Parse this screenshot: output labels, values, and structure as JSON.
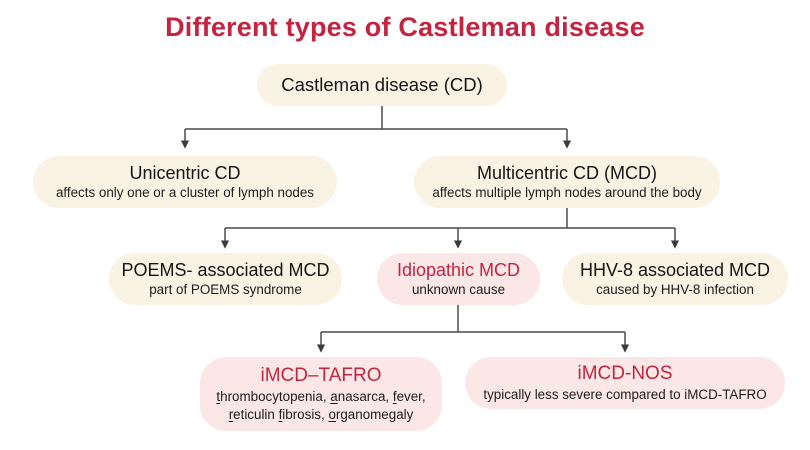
{
  "title": "Different types of Castleman disease",
  "colors": {
    "title_red": "#C32540",
    "node_red": "#C32540",
    "cream_bg": "#FAF2E2",
    "pink_bg": "#FBE7E6",
    "line": "#444444",
    "text": "#161616"
  },
  "nodes": {
    "root": {
      "label": "Castleman disease (CD)"
    },
    "unicentric": {
      "label": "Unicentric CD",
      "desc": "affects only one or a cluster of lymph nodes"
    },
    "multicentric": {
      "label": "Multicentric CD (MCD)",
      "desc": "affects multiple lymph nodes around the body"
    },
    "poems": {
      "label": "POEMS- associated MCD",
      "desc": "part of POEMS syndrome"
    },
    "idiopathic": {
      "label": "Idiopathic MCD",
      "desc": "unknown cause"
    },
    "hhv8": {
      "label": "HHV-8 associated MCD",
      "desc": "caused by HHV-8 infection"
    },
    "tafro": {
      "label": "iMCD–TAFRO",
      "desc_segments": [
        [
          {
            "t": "t",
            "u": true
          },
          {
            "t": "hrombocytopenia, "
          },
          {
            "t": "a",
            "u": true
          },
          {
            "t": "nasarca, "
          },
          {
            "t": "f",
            "u": true
          },
          {
            "t": "ever,"
          }
        ],
        [
          {
            "t": "r",
            "u": true
          },
          {
            "t": "eticulin "
          },
          {
            "t": "f",
            "u": true
          },
          {
            "t": "ibrosis, "
          },
          {
            "t": "o",
            "u": true
          },
          {
            "t": "rganomegaly"
          }
        ]
      ]
    },
    "nos": {
      "label": "iMCD-NOS",
      "desc": "typically less severe compared to iMCD-TAFRO"
    }
  }
}
